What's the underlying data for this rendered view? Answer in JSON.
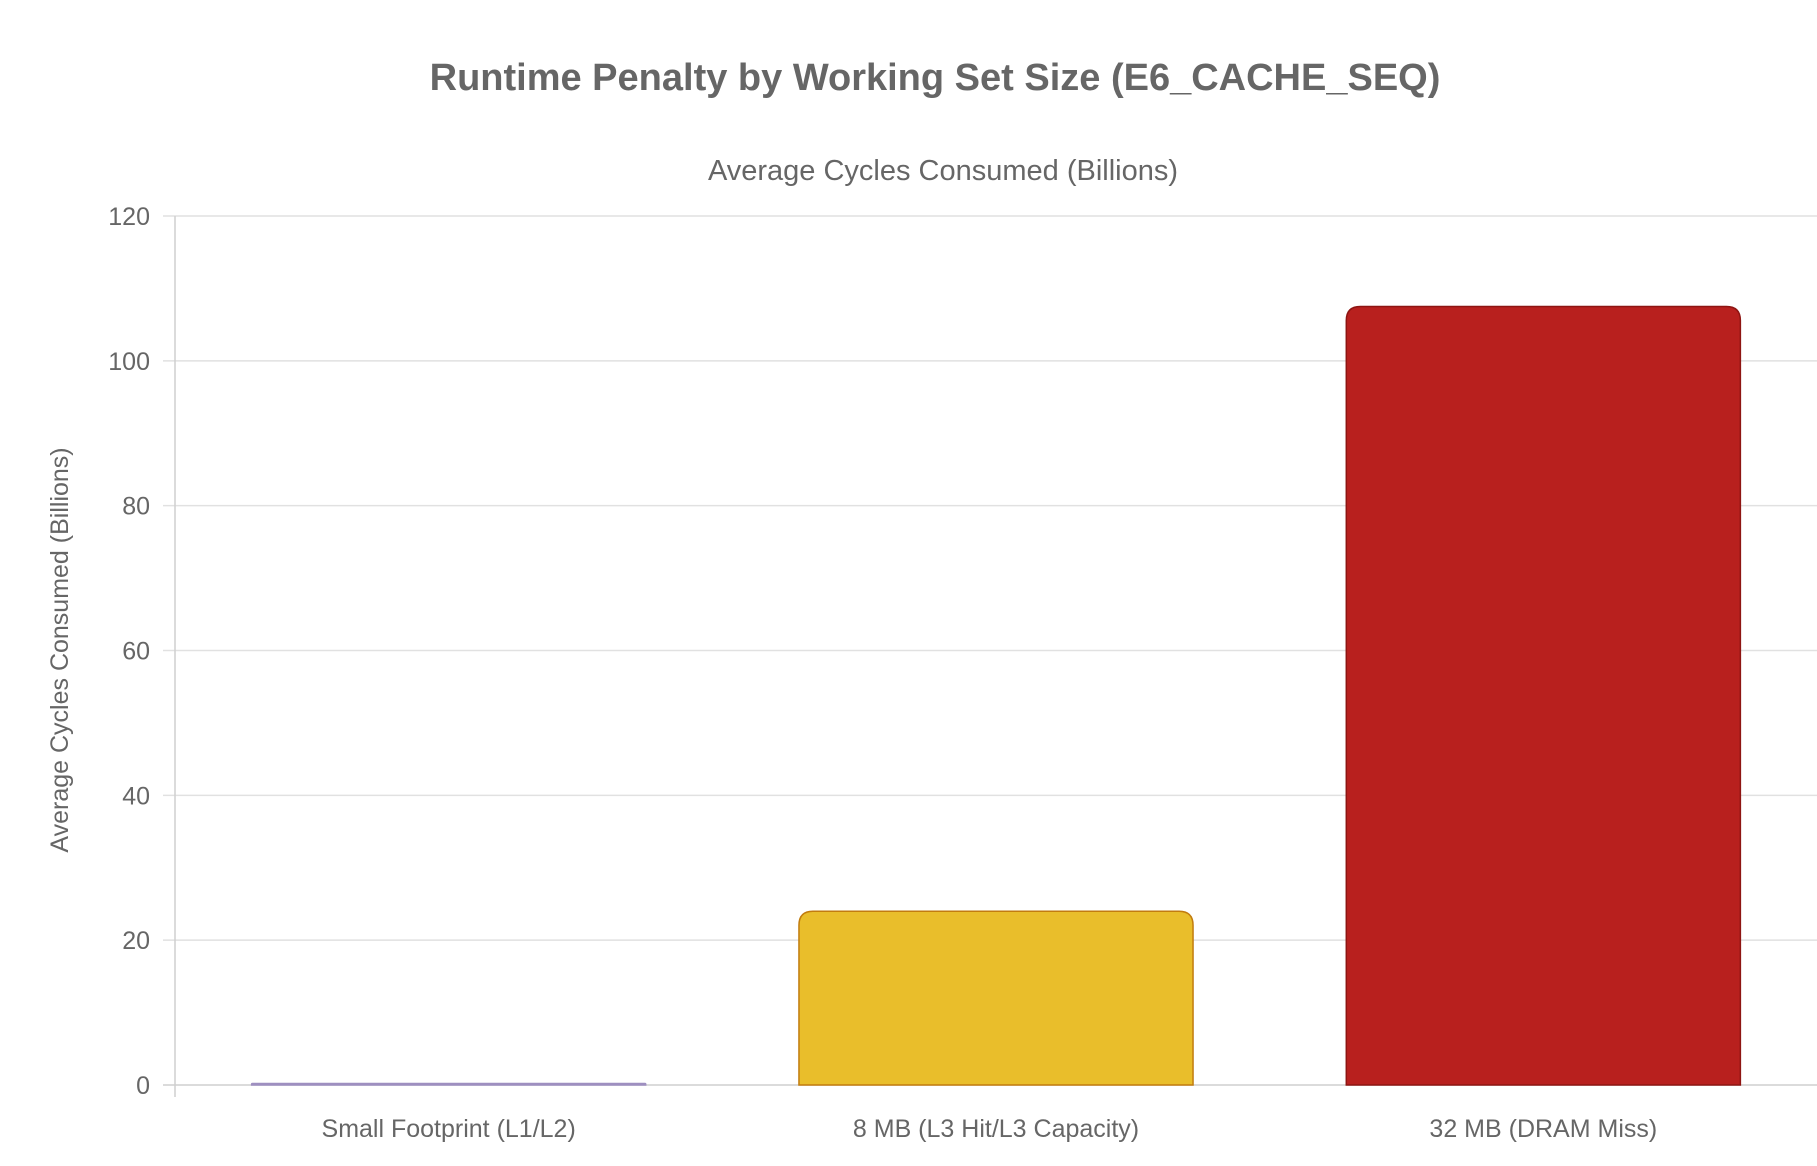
{
  "chart_data": {
    "type": "bar",
    "title": "Runtime Penalty by Working Set Size (E6_CACHE_SEQ)",
    "legend_label": "Average Cycles Consumed (Billions)",
    "ylabel": "Average Cycles Consumed (Billions)",
    "xlabel": "",
    "categories": [
      "Small Footprint (L1/L2)",
      "8 MB (L3 Hit/L3 Capacity)",
      "32 MB (DRAM Miss)"
    ],
    "series": [
      {
        "values": [
          0.2,
          24,
          107.5
        ],
        "colors": [
          "#b39ddb",
          "#e9be2b",
          "#b8201e"
        ],
        "border_colors": [
          "#9e8fc0",
          "#c27c0e",
          "#8e1512"
        ]
      }
    ],
    "ylim": [
      0,
      120
    ],
    "yticks": [
      "0",
      "20",
      "40",
      "60",
      "80",
      "100",
      "120"
    ],
    "grid": true,
    "legend_position": "top"
  }
}
